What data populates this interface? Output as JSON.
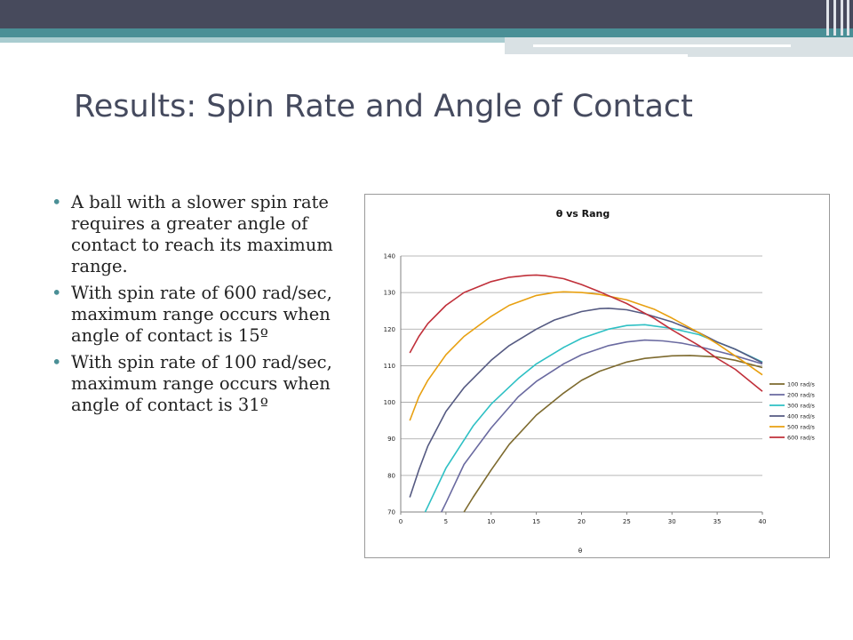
{
  "slide": {
    "title": "Results: Spin Rate and Angle of Contact",
    "bullets": [
      "A ball with a slower spin rate requires a greater angle of contact to reach its maximum range.",
      "With spin rate of 600 rad/sec, maximum range occurs when angle of contact is 15º",
      "With spin rate of 100 rad/sec, maximum range occurs when angle of contact is 31º"
    ],
    "bullet_symbol": "•",
    "accent_color": "#4a8f96",
    "title_color": "#454a5e"
  },
  "chart_data": {
    "type": "line",
    "title": "θ vs Rang",
    "xlabel": "θ",
    "ylabel": "",
    "xlim": [
      0,
      40
    ],
    "ylim": [
      70,
      140
    ],
    "xticks": [
      0,
      5,
      10,
      15,
      20,
      25,
      30,
      35,
      40
    ],
    "yticks": [
      70,
      80,
      90,
      100,
      110,
      120,
      130,
      140
    ],
    "grid": "horizontal",
    "legend": "right",
    "series": [
      {
        "name": "100 rad/s",
        "color": "#7d6a2e",
        "x": [
          7,
          8,
          10,
          12,
          15,
          18,
          20,
          22,
          25,
          27,
          30,
          32,
          35,
          37,
          40
        ],
        "y": [
          70,
          74,
          81.5,
          88.5,
          96.5,
          102.5,
          106,
          108.5,
          111,
          112,
          112.7,
          112.8,
          112.4,
          111.5,
          109.5
        ]
      },
      {
        "name": "200 rad/s",
        "color": "#6a6aa0",
        "x": [
          4.5,
          5,
          7,
          10,
          13,
          15,
          18,
          20,
          23,
          25,
          27,
          29,
          31,
          33,
          35,
          37,
          40
        ],
        "y": [
          70,
          72.5,
          83,
          93,
          101.5,
          105.7,
          110.5,
          113,
          115.5,
          116.5,
          117,
          116.8,
          116.2,
          115.2,
          114,
          112.7,
          110.5
        ]
      },
      {
        "name": "300 rad/s",
        "color": "#2ec0c4",
        "x": [
          2.7,
          3,
          5,
          8,
          10,
          13,
          15,
          18,
          20,
          23,
          25,
          27,
          30,
          33,
          35,
          37,
          40
        ],
        "y": [
          70,
          71.5,
          82,
          93.5,
          99.5,
          106.5,
          110.5,
          115,
          117.5,
          120,
          121,
          121.2,
          120.2,
          118.5,
          116.5,
          114.5,
          111
        ]
      },
      {
        "name": "400 rad/s",
        "color": "#555a82",
        "x": [
          1,
          2,
          3,
          5,
          7,
          10,
          12,
          15,
          17,
          20,
          22,
          23,
          25,
          27,
          30,
          33,
          35,
          37,
          40
        ],
        "y": [
          74,
          81.5,
          88,
          97.5,
          104,
          111.5,
          115.5,
          120,
          122.5,
          124.8,
          125.6,
          125.7,
          125.3,
          124.2,
          122,
          119,
          116.5,
          114.5,
          110.8
        ]
      },
      {
        "name": "500 rad/s",
        "color": "#e8a010",
        "x": [
          1,
          2,
          3,
          5,
          7,
          10,
          12,
          15,
          17,
          18,
          20,
          22,
          25,
          28,
          30,
          33,
          35,
          38,
          40
        ],
        "y": [
          95,
          101.5,
          106,
          113,
          118,
          123.5,
          126.5,
          129.2,
          130,
          130.2,
          130,
          129.5,
          128,
          125.5,
          123,
          119,
          116,
          111,
          107.5
        ]
      },
      {
        "name": "600 rad/s",
        "color": "#c0303a",
        "x": [
          1,
          2,
          3,
          5,
          7,
          10,
          12,
          14,
          15,
          16,
          18,
          20,
          22,
          25,
          28,
          30,
          33,
          35,
          37,
          40
        ],
        "y": [
          113.5,
          118,
          121.5,
          126.5,
          130,
          133,
          134.2,
          134.7,
          134.8,
          134.6,
          133.8,
          132.2,
          130.2,
          127,
          123,
          119.8,
          115.5,
          112,
          109,
          103
        ]
      }
    ]
  }
}
